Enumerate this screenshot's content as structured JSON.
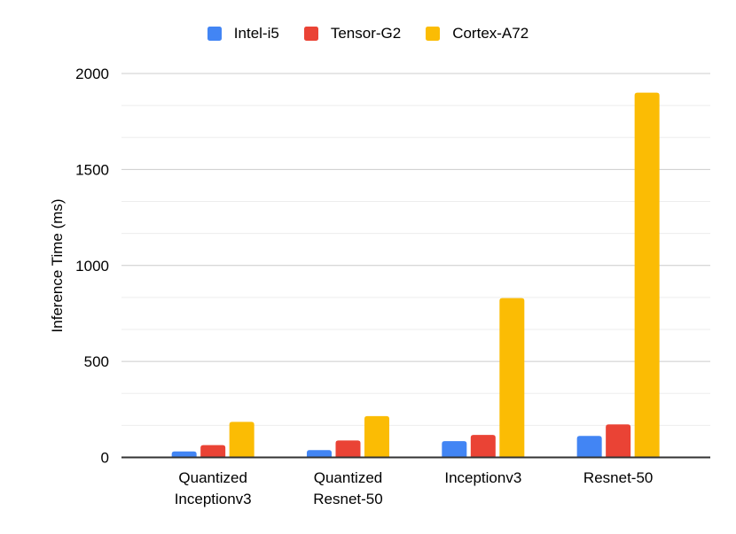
{
  "chart_data": {
    "type": "bar",
    "title": "",
    "xlabel": "",
    "ylabel": "Inference Time (ms)",
    "ylim": [
      0,
      2000
    ],
    "y_major_ticks": [
      "0",
      "500",
      "1000",
      "1500",
      "2000"
    ],
    "y_minor_gridlines_per_interval": 2,
    "grid": true,
    "legend_position": "top",
    "categories": [
      "Quantized\nInceptionv3",
      "Quantized\nResnet-50",
      "Inceptionv3",
      "Resnet-50"
    ],
    "series": [
      {
        "name": "Intel-i5",
        "color": "#4285F4",
        "values": [
          31,
          38,
          85,
          112
        ]
      },
      {
        "name": "Tensor-G2",
        "color": "#EA4335",
        "values": [
          64,
          88,
          117,
          172
        ]
      },
      {
        "name": "Cortex-A72",
        "color": "#FBBC04",
        "values": [
          185,
          215,
          830,
          1900
        ]
      }
    ],
    "colors": {
      "major_gridline": "#cccccc",
      "minor_gridline": "#ededed",
      "axis_line": "#333333",
      "text": "#000000",
      "background": "#ffffff"
    }
  }
}
